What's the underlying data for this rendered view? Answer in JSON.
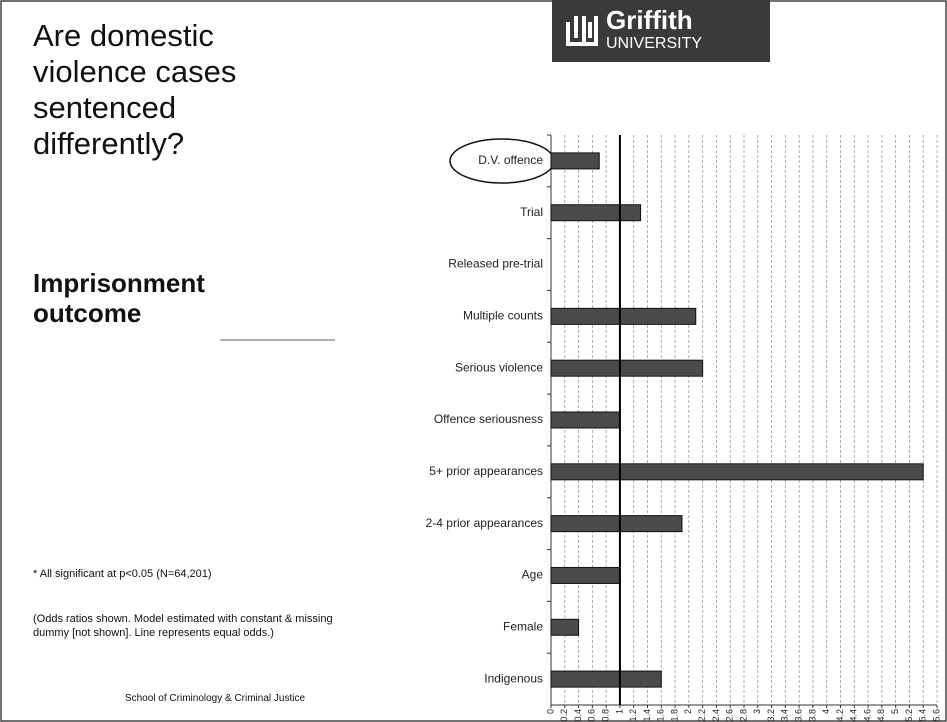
{
  "chart_data": {
    "type": "barh",
    "title": "Are domestic violence cases sentenced differently?",
    "subtitle": "Imprisonment outcome",
    "notes": [
      "* All significant at p<0.05 (N=64,201)",
      "(Odds ratios shown. Model estimated with constant & missing dummy [not shown]. Line represents equal odds.)"
    ],
    "footer": "School of Criminology & Criminal Justice",
    "logo": {
      "name": "Griffith",
      "sub": "UNIVERSITY"
    },
    "categories": [
      "D.V. offence",
      "Trial",
      "Released pre-trial",
      "Multiple counts",
      "Serious violence",
      "Offence seriousness",
      "5+ prior appearances",
      "2-4 prior appearances",
      "Age",
      "Female",
      "Indigenous"
    ],
    "values": [
      0.7,
      1.3,
      null,
      2.1,
      2.2,
      1.0,
      5.4,
      1.9,
      1.0,
      0.4,
      1.6
    ],
    "color": "#4a4a4a",
    "reference_x": 1,
    "xlim": [
      0,
      5.6
    ],
    "xticks": [
      0,
      0.2,
      0.4,
      0.6,
      0.8,
      1,
      1.2,
      1.4,
      1.6,
      1.8,
      2,
      2.2,
      2.4,
      2.6,
      2.8,
      3,
      3.2,
      3.4,
      3.6,
      3.8,
      4,
      4.2,
      4.4,
      4.6,
      4.8,
      5,
      5.2,
      5.4,
      5.6
    ],
    "grid": true
  }
}
